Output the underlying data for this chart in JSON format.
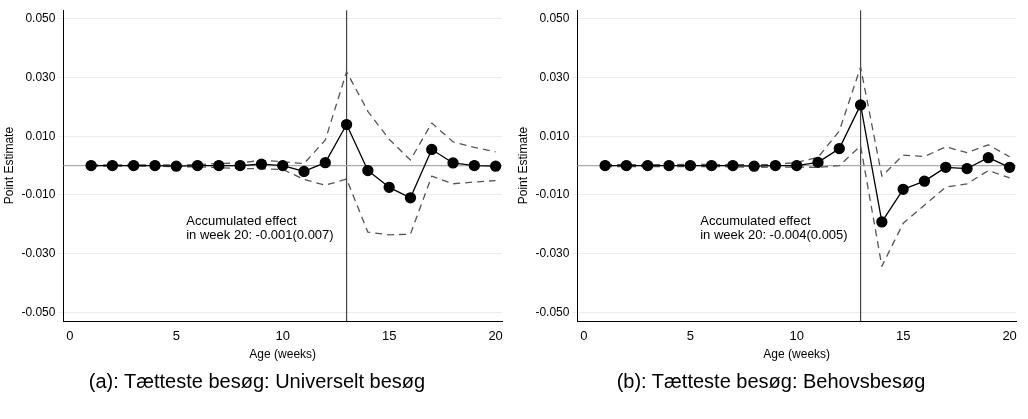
{
  "chart_data": [
    {
      "type": "line",
      "title": "(a): Tætteste besøg: Universelt besøg",
      "xlabel": "Age (weeks)",
      "ylabel": "Point Estimate",
      "x": [
        1,
        2,
        3,
        4,
        5,
        6,
        7,
        8,
        9,
        10,
        11,
        12,
        13,
        14,
        15,
        16,
        17,
        18,
        19,
        20
      ],
      "series": [
        {
          "color": "#000000",
          "marker": "circle",
          "line_style": "solid",
          "values": [
            0,
            0,
            0,
            0,
            -0.0002,
            0,
            0,
            0,
            0.0005,
            0,
            -0.002,
            0.001,
            0.014,
            -0.0017,
            -0.0074,
            -0.011,
            0.0055,
            0.0009,
            0,
            -0.0002
          ]
        },
        {
          "color": "#555555",
          "marker": "none",
          "line_style": "dashed",
          "values": [
            0.0002,
            0.0002,
            0.0002,
            0.0002,
            0.0002,
            0.0003,
            0.0007,
            0.0009,
            0.0018,
            0.0013,
            0.0007,
            0.0087,
            0.032,
            0.0185,
            0.009,
            0.0019,
            0.0145,
            0.0081,
            0.0062,
            0.0047
          ]
        },
        {
          "color": "#555555",
          "marker": "none",
          "line_style": "dashed",
          "values": [
            -0.0002,
            -0.0002,
            -0.0002,
            -0.0002,
            -0.0004,
            -0.0004,
            -0.0007,
            -0.001,
            -0.0011,
            -0.0013,
            -0.0047,
            -0.0067,
            -0.0046,
            -0.0227,
            -0.0236,
            -0.0234,
            -0.0036,
            -0.0062,
            -0.0056,
            -0.0051
          ]
        }
      ],
      "xlim": [
        -0.3,
        20.3
      ],
      "xticks": [
        0,
        5,
        10,
        15,
        20
      ],
      "ylim": [
        -0.053,
        0.053
      ],
      "yticks": [
        {
          "value": -0.05,
          "label": "-0.050"
        },
        {
          "value": -0.03,
          "label": "-0.030"
        },
        {
          "value": -0.01,
          "label": "-0.010"
        },
        {
          "value": 0.01,
          "label": "0.010"
        },
        {
          "value": 0.03,
          "label": "0.030"
        },
        {
          "value": 0.05,
          "label": "0.050"
        }
      ],
      "ref_lines": [
        {
          "axis": "x",
          "value": 13,
          "color": "#444444"
        },
        {
          "axis": "y",
          "value": 0,
          "color": "#aaaaaa"
        }
      ],
      "annotations": [
        "Accumulated effect\nin week 20: -0.001(0.007)"
      ],
      "grid": "y",
      "legend": false
    },
    {
      "type": "line",
      "title": "(b): Tætteste besøg: Behovsbesøg",
      "xlabel": "Age (weeks)",
      "ylabel": "Point Estimate",
      "x": [
        1,
        2,
        3,
        4,
        5,
        6,
        7,
        8,
        9,
        10,
        11,
        12,
        13,
        14,
        15,
        16,
        17,
        18,
        19,
        20
      ],
      "series": [
        {
          "color": "#000000",
          "marker": "circle",
          "line_style": "solid",
          "values": [
            0,
            0,
            0,
            0,
            0,
            0,
            0,
            -0.0002,
            0,
            0,
            0.0011,
            0.0058,
            0.0207,
            -0.0192,
            -0.0081,
            -0.0053,
            -0.0006,
            -0.001,
            0.0027,
            -0.0006
          ]
        },
        {
          "color": "#555555",
          "marker": "none",
          "line_style": "dashed",
          "values": [
            0.0003,
            0.0003,
            0.0003,
            0.0003,
            0.0004,
            0.0004,
            0.0003,
            0.0003,
            0.0004,
            0.0011,
            0.0028,
            0.0118,
            0.0336,
            -0.0036,
            0.0036,
            0.0031,
            0.0064,
            0.0044,
            0.0071,
            0.003
          ]
        },
        {
          "color": "#555555",
          "marker": "none",
          "line_style": "dashed",
          "values": [
            -0.0003,
            -0.0003,
            -0.0003,
            -0.0003,
            -0.0003,
            -0.0003,
            -0.0004,
            -0.0006,
            -0.0005,
            -0.0005,
            -0.0006,
            0,
            0.0067,
            -0.0343,
            -0.0197,
            -0.0135,
            -0.0073,
            -0.0062,
            -0.0017,
            -0.0042
          ]
        }
      ],
      "xlim": [
        -0.3,
        20.3
      ],
      "xticks": [
        0,
        5,
        10,
        15,
        20
      ],
      "ylim": [
        -0.053,
        0.053
      ],
      "yticks": [
        {
          "value": -0.05,
          "label": "-0.050"
        },
        {
          "value": -0.03,
          "label": "-0.030"
        },
        {
          "value": -0.01,
          "label": "-0.010"
        },
        {
          "value": 0.01,
          "label": "0.010"
        },
        {
          "value": 0.03,
          "label": "0.030"
        },
        {
          "value": 0.05,
          "label": "0.050"
        }
      ],
      "ref_lines": [
        {
          "axis": "x",
          "value": 13,
          "color": "#444444"
        },
        {
          "axis": "y",
          "value": 0,
          "color": "#aaaaaa"
        }
      ],
      "annotations": [
        "Accumulated effect\nin week 20: -0.004(0.005)"
      ],
      "grid": "y",
      "legend": false
    }
  ]
}
